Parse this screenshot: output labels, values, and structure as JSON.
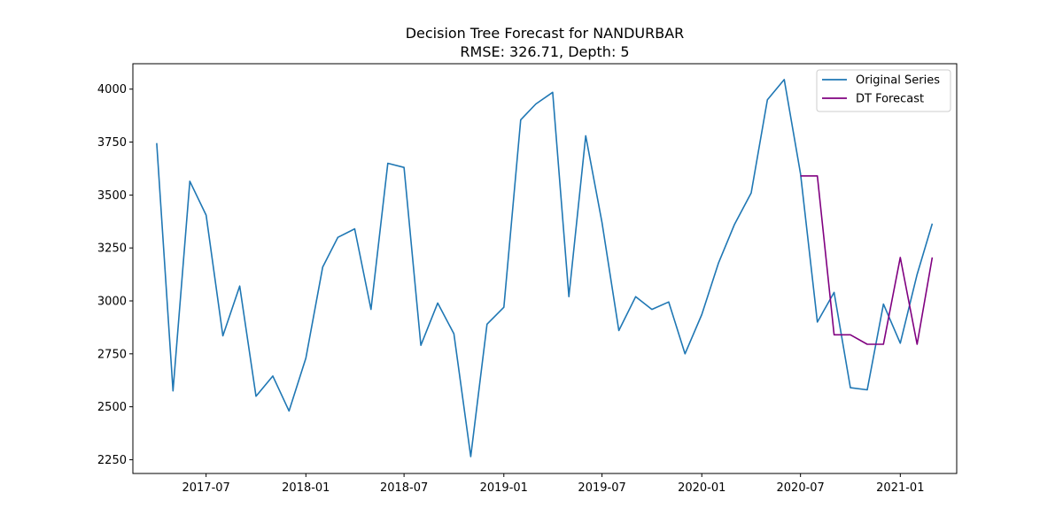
{
  "chart_data": {
    "type": "line",
    "title": "Decision Tree Forecast for NANDURBAR",
    "subtitle": "RMSE: 326.71, Depth: 5",
    "xlabel": "",
    "ylabel": "",
    "x_range": [
      "2017-02-16",
      "2021-04-15"
    ],
    "ylim": [
      2185,
      4120
    ],
    "x_ticks": [
      {
        "date": "2017-07-01",
        "label": "2017-07"
      },
      {
        "date": "2018-01-01",
        "label": "2018-01"
      },
      {
        "date": "2018-07-01",
        "label": "2018-07"
      },
      {
        "date": "2019-01-01",
        "label": "2019-01"
      },
      {
        "date": "2019-07-01",
        "label": "2019-07"
      },
      {
        "date": "2020-01-01",
        "label": "2020-01"
      },
      {
        "date": "2020-07-01",
        "label": "2020-07"
      },
      {
        "date": "2021-01-01",
        "label": "2021-01"
      }
    ],
    "y_ticks": [
      2250,
      2500,
      2750,
      3000,
      3250,
      3500,
      3750,
      4000
    ],
    "legend_position": "top-right",
    "grid": false,
    "series": [
      {
        "name": "Original Series",
        "color": "#1f77b4",
        "points": [
          [
            "2017-04-01",
            3745
          ],
          [
            "2017-05-01",
            2575
          ],
          [
            "2017-06-01",
            3565
          ],
          [
            "2017-07-01",
            3405
          ],
          [
            "2017-08-01",
            2835
          ],
          [
            "2017-09-01",
            3070
          ],
          [
            "2017-10-01",
            2550
          ],
          [
            "2017-11-01",
            2645
          ],
          [
            "2017-12-01",
            2480
          ],
          [
            "2018-01-01",
            2730
          ],
          [
            "2018-02-01",
            3160
          ],
          [
            "2018-03-01",
            3300
          ],
          [
            "2018-04-01",
            3340
          ],
          [
            "2018-05-01",
            2960
          ],
          [
            "2018-06-01",
            3650
          ],
          [
            "2018-07-01",
            3630
          ],
          [
            "2018-08-01",
            2790
          ],
          [
            "2018-09-01",
            2990
          ],
          [
            "2018-10-01",
            2845
          ],
          [
            "2018-11-01",
            2265
          ],
          [
            "2018-12-01",
            2890
          ],
          [
            "2019-01-01",
            2970
          ],
          [
            "2019-02-01",
            3855
          ],
          [
            "2019-03-01",
            3930
          ],
          [
            "2019-04-01",
            3985
          ],
          [
            "2019-05-01",
            3020
          ],
          [
            "2019-06-01",
            3780
          ],
          [
            "2019-07-01",
            3370
          ],
          [
            "2019-08-01",
            2860
          ],
          [
            "2019-09-01",
            3020
          ],
          [
            "2019-10-01",
            2960
          ],
          [
            "2019-11-01",
            2995
          ],
          [
            "2019-12-01",
            2750
          ],
          [
            "2020-01-01",
            2935
          ],
          [
            "2020-02-01",
            3180
          ],
          [
            "2020-03-01",
            3360
          ],
          [
            "2020-04-01",
            3510
          ],
          [
            "2020-05-01",
            3950
          ],
          [
            "2020-06-01",
            4045
          ],
          [
            "2020-07-01",
            3600
          ],
          [
            "2020-08-01",
            2900
          ],
          [
            "2020-09-01",
            3040
          ],
          [
            "2020-10-01",
            2590
          ],
          [
            "2020-11-01",
            2580
          ],
          [
            "2020-12-01",
            2985
          ],
          [
            "2021-01-01",
            2800
          ],
          [
            "2021-02-01",
            3125
          ],
          [
            "2021-03-01",
            3365
          ]
        ]
      },
      {
        "name": "DT Forecast",
        "color": "#800080",
        "points": [
          [
            "2020-07-01",
            3590
          ],
          [
            "2020-08-01",
            3590
          ],
          [
            "2020-09-01",
            2840
          ],
          [
            "2020-10-01",
            2840
          ],
          [
            "2020-11-01",
            2795
          ],
          [
            "2020-12-01",
            2795
          ],
          [
            "2021-01-01",
            3205
          ],
          [
            "2021-02-01",
            2795
          ],
          [
            "2021-03-01",
            3205
          ]
        ]
      }
    ]
  }
}
